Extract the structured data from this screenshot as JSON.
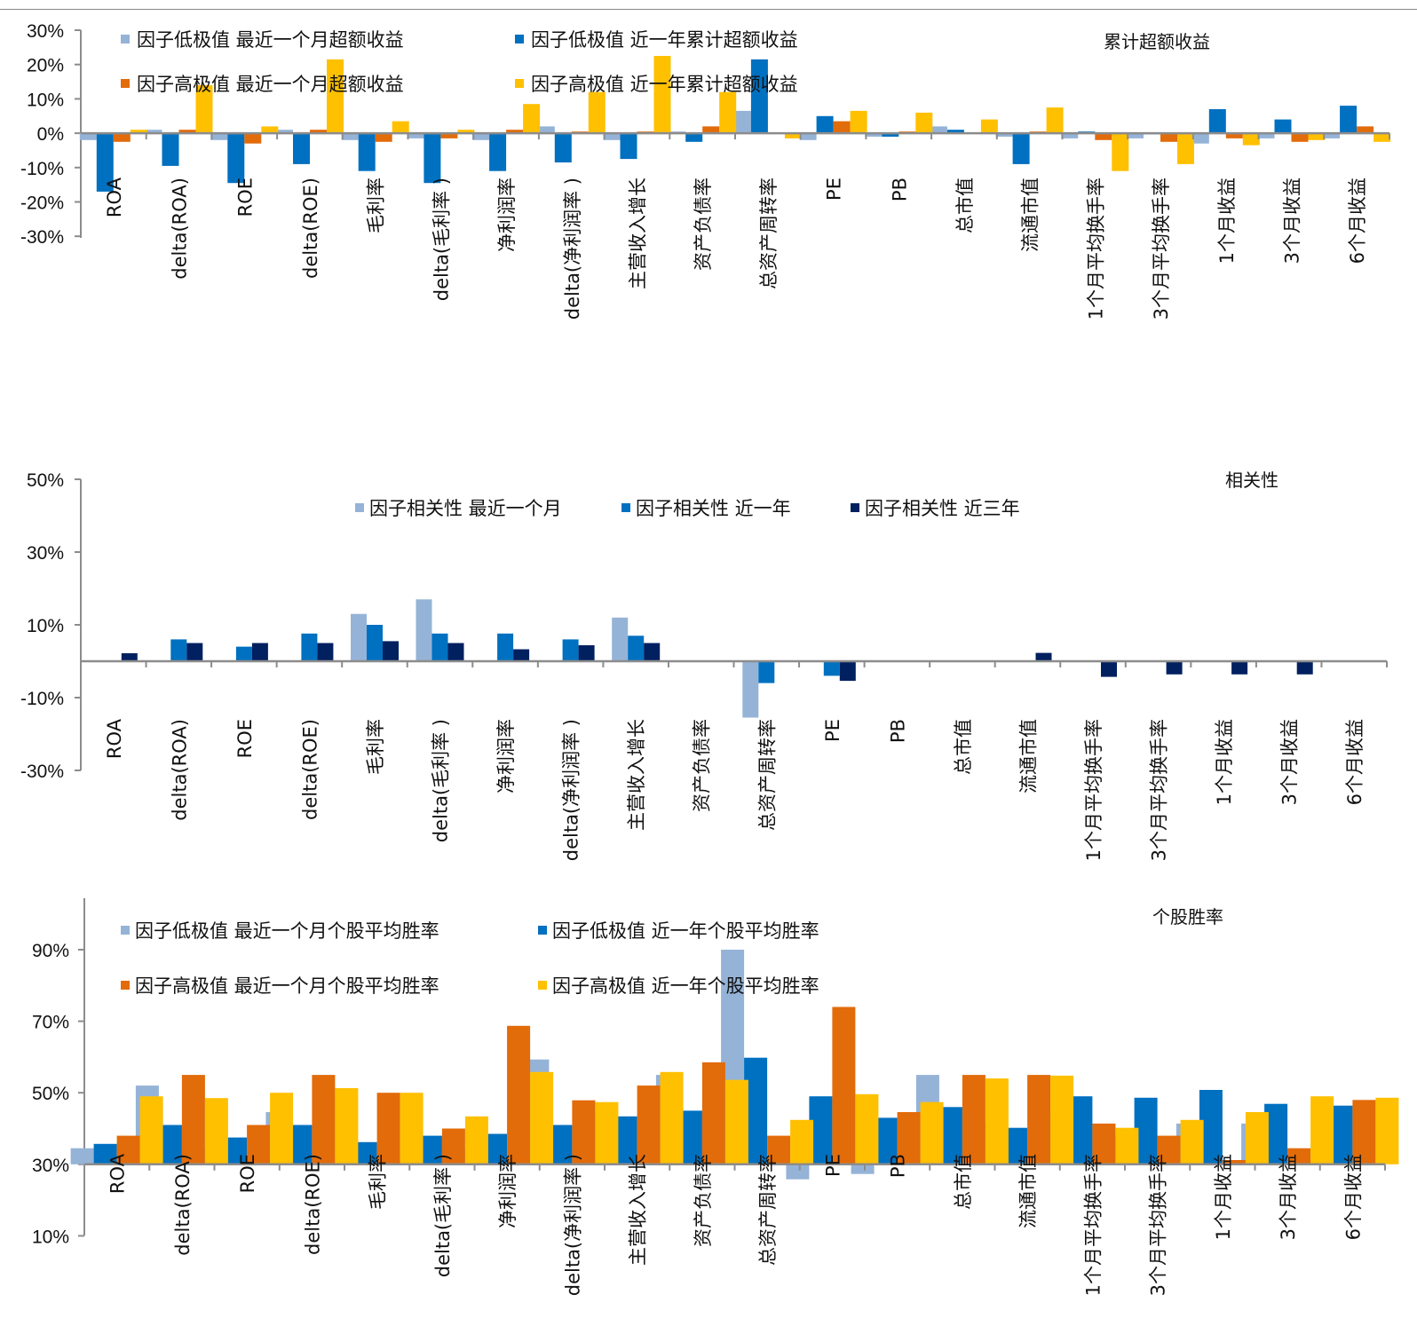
{
  "chart_data": [
    {
      "type": "bar",
      "title": "累计超额收益",
      "xlabel": "",
      "ylabel": "",
      "ylim": [
        -30,
        30
      ],
      "yticks": [
        30,
        20,
        10,
        0,
        -10,
        -20,
        -30
      ],
      "ytick_labels": [
        "30%",
        "20%",
        "10%",
        "0%",
        "-10%",
        "-20%",
        "-30%"
      ],
      "baseline": 0,
      "grid": false,
      "legend_position": "top-left",
      "categories": [
        "ROA",
        "delta(ROA)",
        "ROE",
        "delta(ROE)",
        "毛利率",
        "delta(毛利率 )",
        "净利润率",
        "delta(净利润率 )",
        "主营收入增长",
        "资产负债率",
        "总资产周转率",
        "PE",
        "PB",
        "总市值",
        "流通市值",
        "1个月平均换手率",
        "3个月平均换手率",
        "1个月收益",
        "3个月收益",
        "6个月收益"
      ],
      "series": [
        {
          "name": "因子低极值 最近一个月超额收益",
          "color": "#95b3d7",
          "values": [
            -2,
            1,
            -2,
            1,
            -2,
            -1.5,
            -2,
            2,
            -2,
            0.5,
            6.5,
            -2,
            -1,
            2,
            -1,
            -1.5,
            -1.5,
            -3,
            -1.5,
            -1.5
          ]
        },
        {
          "name": "因子低极值 近一年累计超额收益",
          "color": "#0070c0",
          "values": [
            -17,
            -9.5,
            -14.5,
            -9,
            -11,
            -14.5,
            -11,
            -8.5,
            -7.5,
            -2.5,
            21.5,
            5,
            -1,
            1,
            -9,
            0.5,
            -0.3,
            7,
            4,
            8
          ]
        },
        {
          "name": "因子高极值 最近一个月超额收益",
          "color": "#e26b0a",
          "values": [
            -2.5,
            1,
            -3,
            1,
            -2.5,
            -1.5,
            1,
            0.5,
            0.5,
            2,
            0,
            3.5,
            0.5,
            0,
            0.5,
            -2,
            -2.5,
            -1.5,
            -2.5,
            2
          ]
        },
        {
          "name": "因子高极值 近一年累计超额收益",
          "color": "#ffc000",
          "values": [
            1,
            14,
            2,
            21.5,
            3.5,
            1,
            8.5,
            12,
            22.5,
            12,
            -1.5,
            6.5,
            6,
            4,
            7.5,
            -11,
            -9,
            -3.5,
            -2,
            -2.5
          ]
        }
      ]
    },
    {
      "type": "bar",
      "title": "相关性",
      "xlabel": "",
      "ylabel": "",
      "ylim": [
        -30,
        50
      ],
      "yticks": [
        50,
        30,
        10,
        -10,
        -30
      ],
      "ytick_labels": [
        "50%",
        "30%",
        "10%",
        "-10%",
        "-30%"
      ],
      "baseline": 0,
      "grid": false,
      "legend_position": "top-center",
      "categories": [
        "ROA",
        "delta(ROA)",
        "ROE",
        "delta(ROE)",
        "毛利率",
        "delta(毛利率 )",
        "净利润率",
        "delta(净利润率 )",
        "主营收入增长",
        "资产负债率",
        "总资产周转率",
        "PE",
        "PB",
        "总市值",
        "流通市值",
        "1个月平均换手率",
        "3个月平均换手率",
        "1个月收益",
        "3个月收益",
        "6个月收益"
      ],
      "series": [
        {
          "name": "因子相关性 最近一个月",
          "color": "#95b3d7",
          "values": [
            0,
            0,
            0,
            0,
            13,
            17,
            0,
            0,
            12,
            0,
            -15.5,
            0,
            0,
            0,
            0,
            0,
            0,
            0,
            0,
            0
          ]
        },
        {
          "name": "因子相关性 近一年",
          "color": "#0070c0",
          "values": [
            0,
            6,
            4,
            7.6,
            10,
            7.6,
            7.6,
            6,
            7,
            0,
            -6,
            -4,
            0,
            0,
            0,
            0,
            0,
            0,
            0,
            0
          ]
        },
        {
          "name": "因子相关性 近三年",
          "color": "#002060",
          "values": [
            2.2,
            5,
            5,
            5,
            5.5,
            5,
            3.3,
            4.4,
            5,
            0,
            0,
            -5.4,
            0,
            0,
            2.3,
            -4.3,
            -3.6,
            -3.6,
            -3.6,
            0
          ]
        }
      ]
    },
    {
      "type": "bar",
      "title": "个股胜率",
      "xlabel": "",
      "ylabel": "",
      "ylim": [
        10,
        100
      ],
      "yticks": [
        90,
        70,
        50,
        30,
        10
      ],
      "ytick_labels": [
        "90%",
        "70%",
        "50%",
        "30%",
        "10%"
      ],
      "baseline": 30,
      "grid": false,
      "legend_position": "top-left",
      "categories": [
        "ROA",
        "delta(ROA)",
        "ROE",
        "delta(ROE)",
        "毛利率",
        "delta(毛利率 )",
        "净利润率",
        "delta(净利润率 )",
        "主营收入增长",
        "资产负债率",
        "总资产周转率",
        "PE",
        "PB",
        "总市值",
        "流通市值",
        "1个月平均换手率",
        "3个月平均换手率",
        "1个月收益",
        "3个月收益",
        "6个月收益"
      ],
      "series": [
        {
          "name": "因子低极值 最近一个月个股平均胜率",
          "color": "#95b3d7",
          "values": [
            34.5,
            52,
            34.5,
            44.6,
            30.5,
            31.5,
            34.5,
            59.3,
            44.6,
            55,
            90,
            25.8,
            27.3,
            55,
            41.4,
            44.6,
            38,
            41.4,
            41.4,
            31.2
          ]
        },
        {
          "name": "因子低极值 近一年个股平均胜率",
          "color": "#0070c0",
          "values": [
            35.7,
            41,
            37.5,
            41,
            36.2,
            38,
            38.5,
            41,
            43.4,
            45,
            59.8,
            49,
            43,
            46,
            40.2,
            49,
            48.6,
            50.8,
            46.9,
            46.4
          ]
        },
        {
          "name": "因子高极值 最近一个月个股平均胜率",
          "color": "#e26b0a",
          "values": [
            38,
            55,
            41,
            55,
            50,
            40,
            68.7,
            47.9,
            52,
            58.5,
            38,
            74,
            44.6,
            55,
            55,
            41.4,
            38,
            31.2,
            34.5,
            48
          ]
        },
        {
          "name": "因子高极值 近一年个股平均胜率",
          "color": "#ffc000",
          "values": [
            49,
            48.5,
            50,
            51.3,
            50,
            43.4,
            55.8,
            47.4,
            55.8,
            53.6,
            42.4,
            49.6,
            47.4,
            54,
            54.8,
            40.2,
            42.4,
            44.6,
            49,
            48.6
          ]
        }
      ]
    }
  ]
}
